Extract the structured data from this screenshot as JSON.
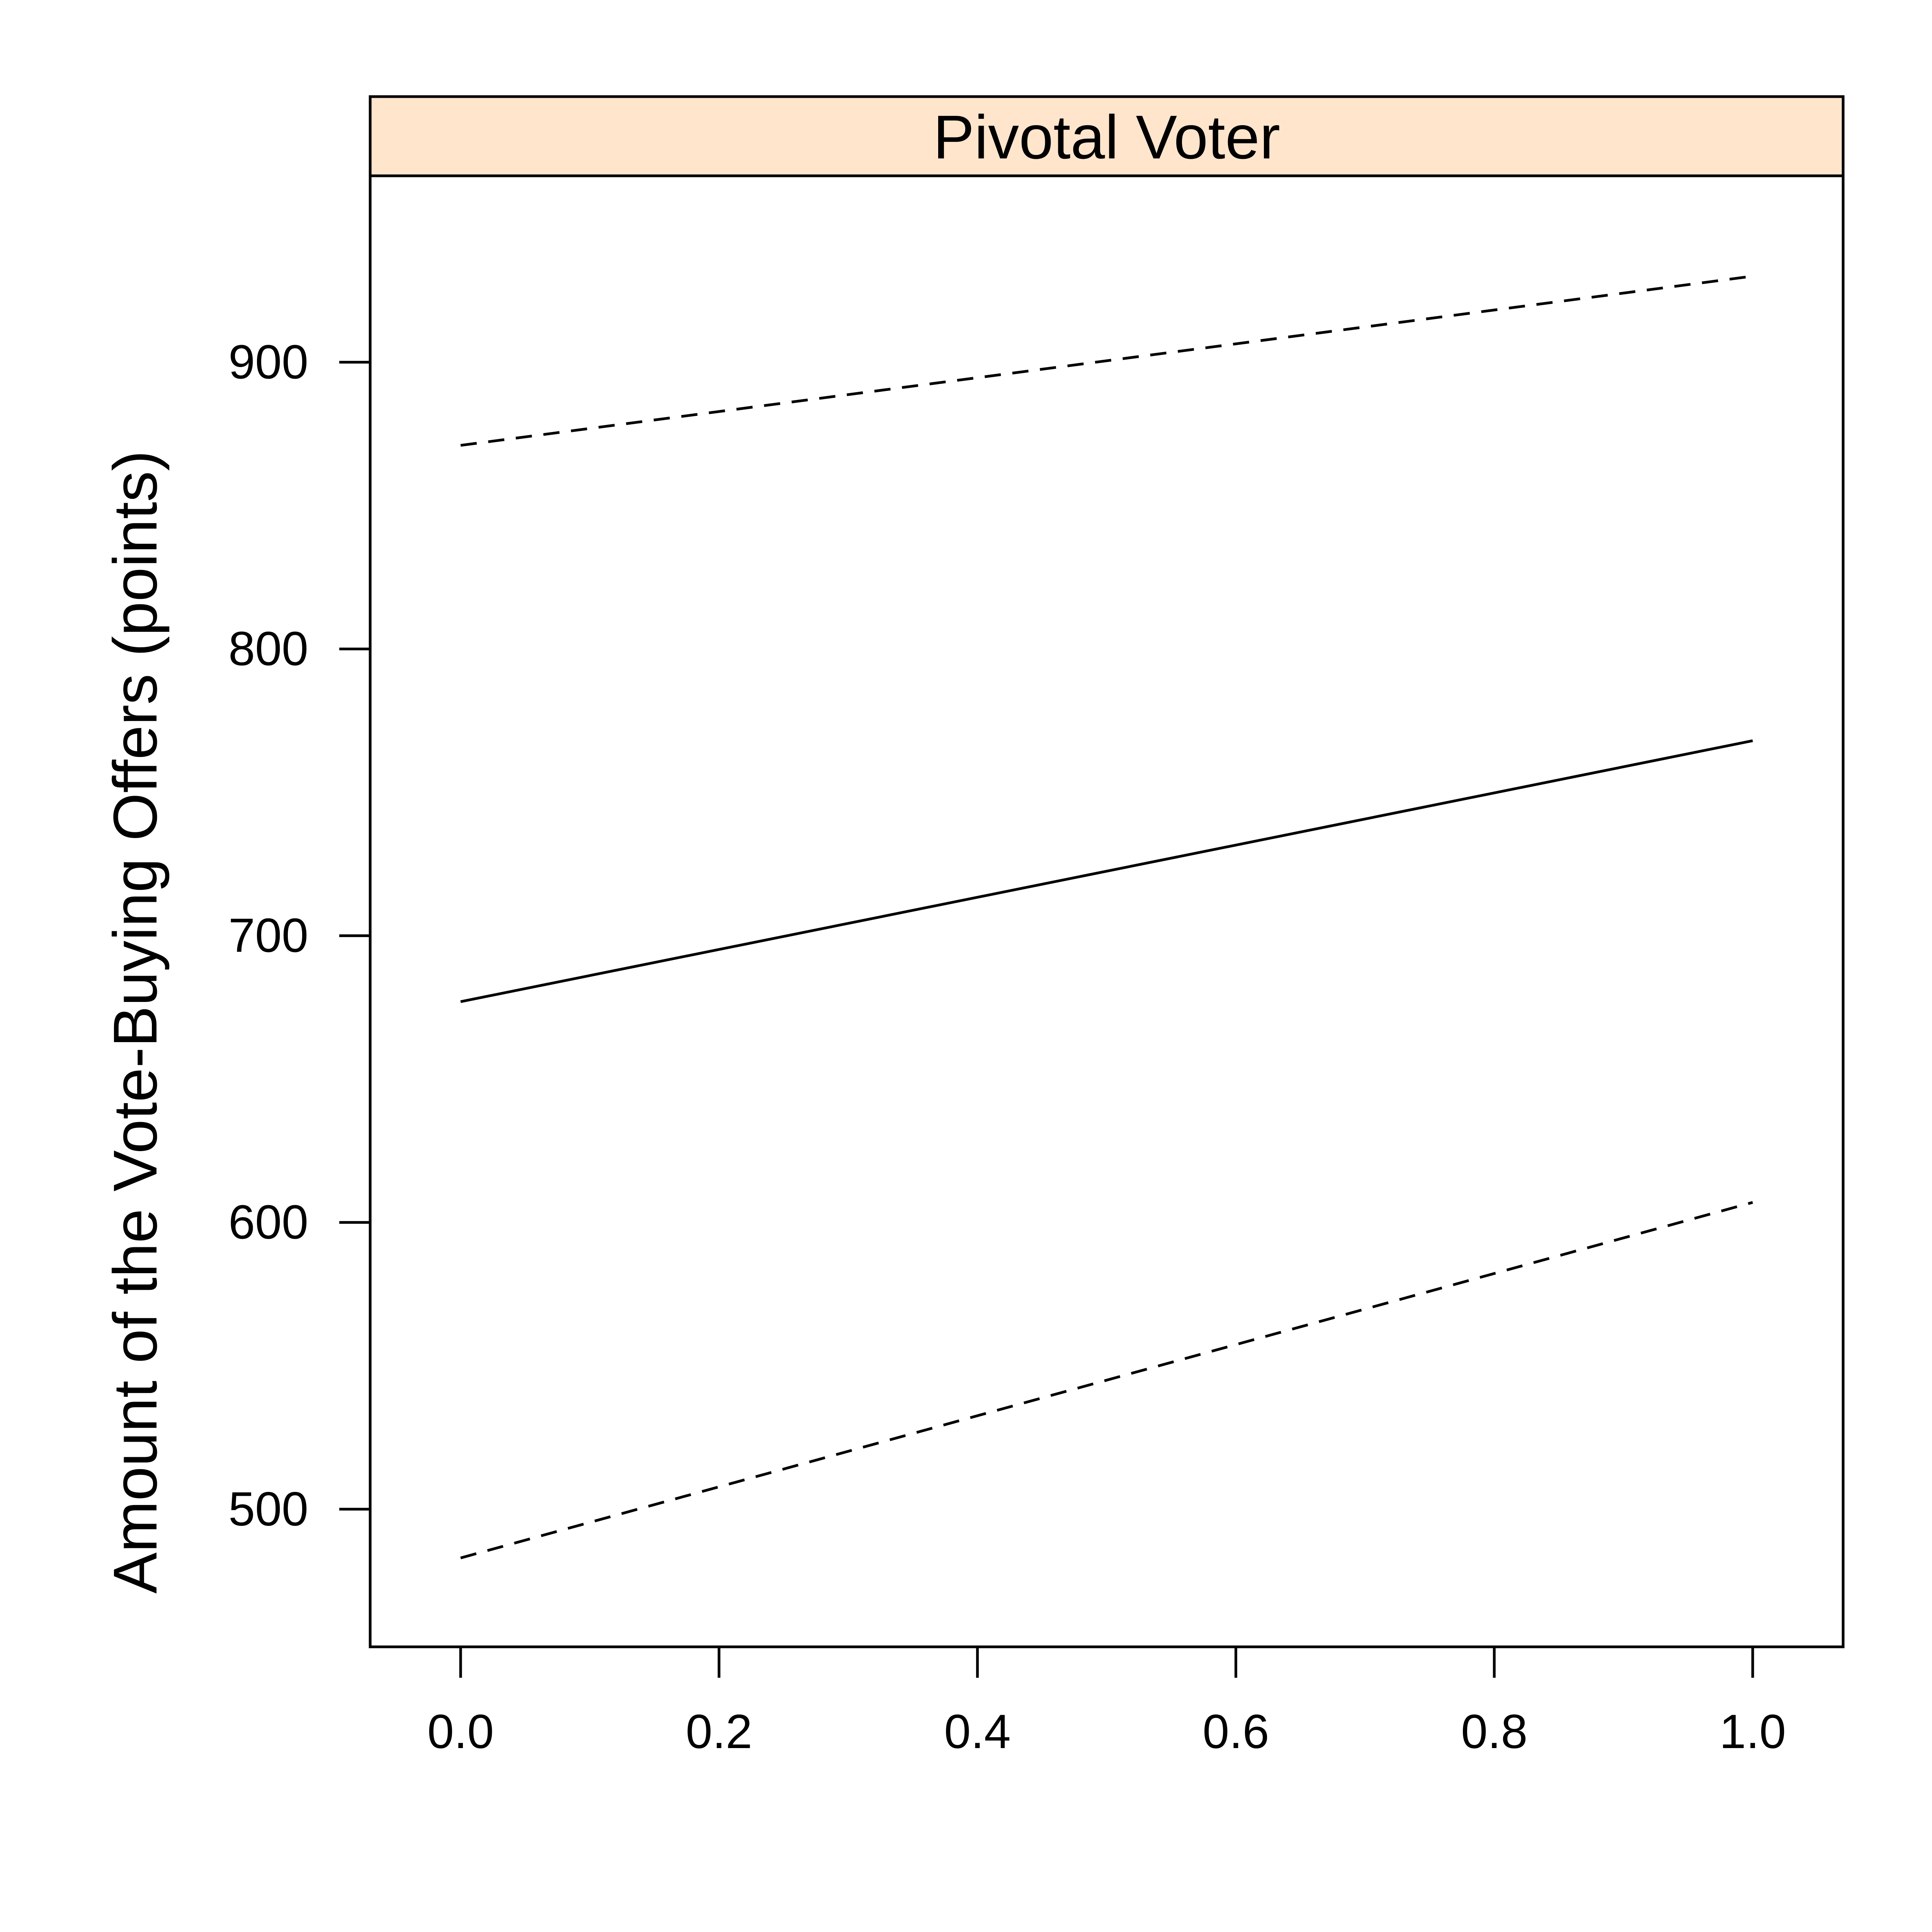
{
  "chart_data": {
    "type": "line",
    "panel_title": "Pivotal Voter",
    "strip_color": "#FFE5CC",
    "xlabel": "",
    "ylabel": "Amount of the Vote-Buying Offers (points)",
    "xlim": [
      -0.07,
      1.07
    ],
    "ylim": [
      452,
      965
    ],
    "x_ticks": [
      0.0,
      0.2,
      0.4,
      0.6,
      0.8,
      1.0
    ],
    "x_tick_labels": [
      "0.0",
      "0.2",
      "0.4",
      "0.6",
      "0.8",
      "1.0"
    ],
    "y_ticks": [
      500,
      600,
      700,
      800,
      900
    ],
    "y_tick_labels": [
      "500",
      "600",
      "700",
      "800",
      "900"
    ],
    "grid": false,
    "series": [
      {
        "style": "dashed",
        "x": [
          0,
          1
        ],
        "y": [
          871,
          930
        ]
      },
      {
        "style": "solid",
        "x": [
          0,
          1
        ],
        "y": [
          677,
          768
        ]
      },
      {
        "style": "dashed",
        "x": [
          0,
          1
        ],
        "y": [
          483,
          607
        ]
      }
    ]
  }
}
